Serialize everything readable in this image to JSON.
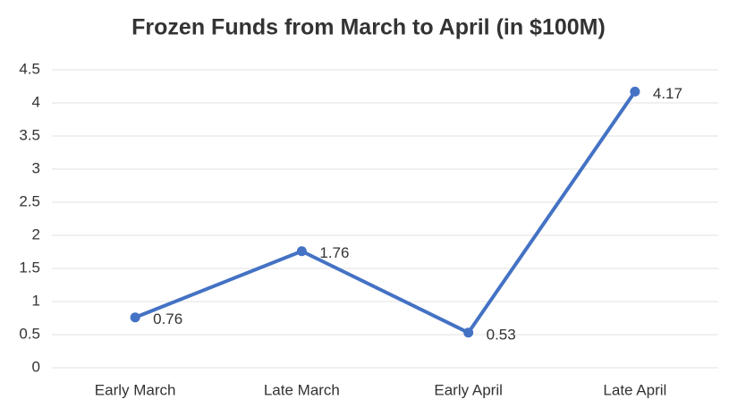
{
  "chart_data": {
    "type": "line",
    "title": "Frozen Funds from March to April (in $100M)",
    "categories": [
      "Early March",
      "Late March",
      "Early April",
      "Late April"
    ],
    "values": [
      0.76,
      1.76,
      0.53,
      4.17
    ],
    "color": "#4472c4",
    "ylim": [
      0,
      4.5
    ],
    "yticks": [
      0,
      0.5,
      1,
      1.5,
      2,
      2.5,
      3,
      3.5,
      4,
      4.5
    ],
    "grid": true
  }
}
